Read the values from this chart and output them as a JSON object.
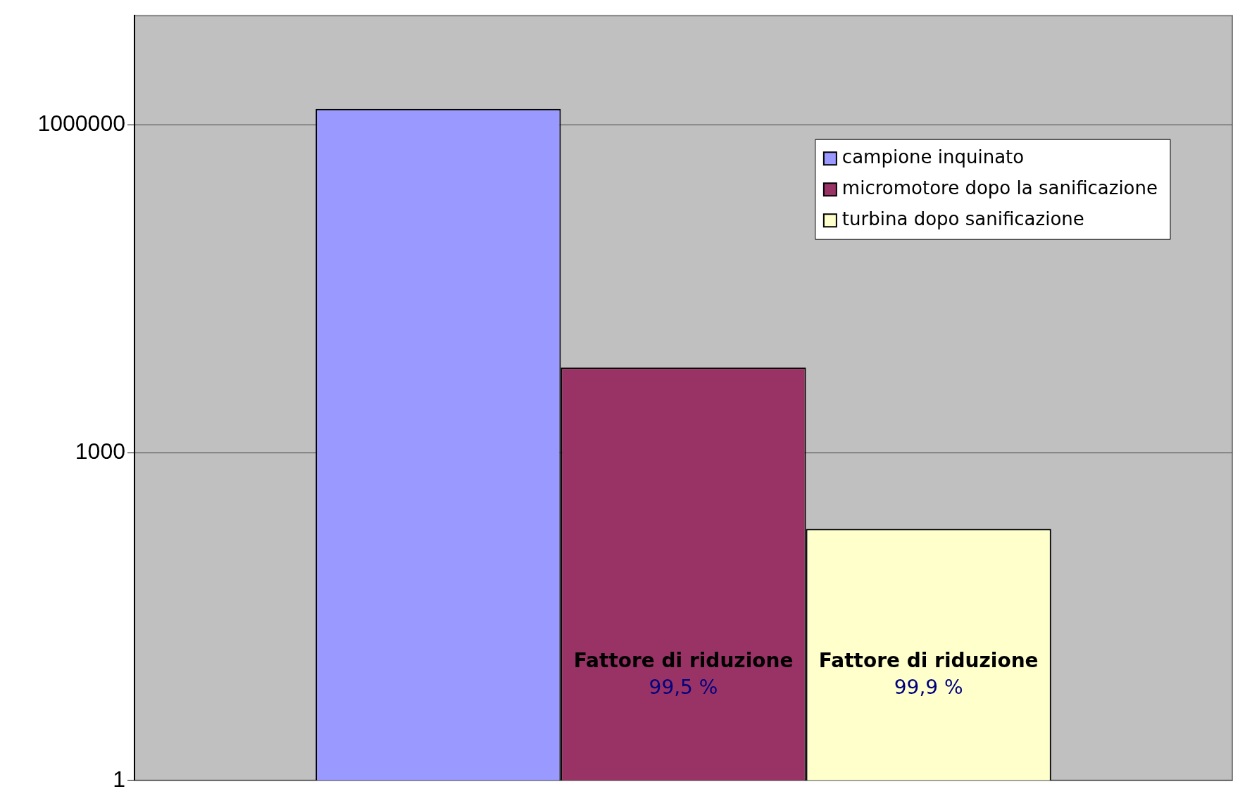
{
  "chart_data": {
    "type": "bar",
    "categories": [
      null
    ],
    "series": [
      {
        "name": "campione inquinato",
        "color": "#9999ff",
        "values": [
          1400000
        ]
      },
      {
        "name": "micromotore dopo la sanificazione",
        "color": "#993366",
        "values": [
          6000
        ]
      },
      {
        "name": "turbina dopo sanificazione",
        "color": "#ffffcc",
        "values": [
          200
        ]
      }
    ],
    "log": true,
    "ylim": [
      1,
      10000000
    ],
    "yticks": [
      1,
      1000,
      1000000
    ],
    "grid": "y",
    "legend": "top right",
    "tick_labels": "y",
    "annotations": [
      "Fattore di riduzione",
      "99,5 %",
      "Fattore di riduzione",
      "99,9 %"
    ]
  }
}
